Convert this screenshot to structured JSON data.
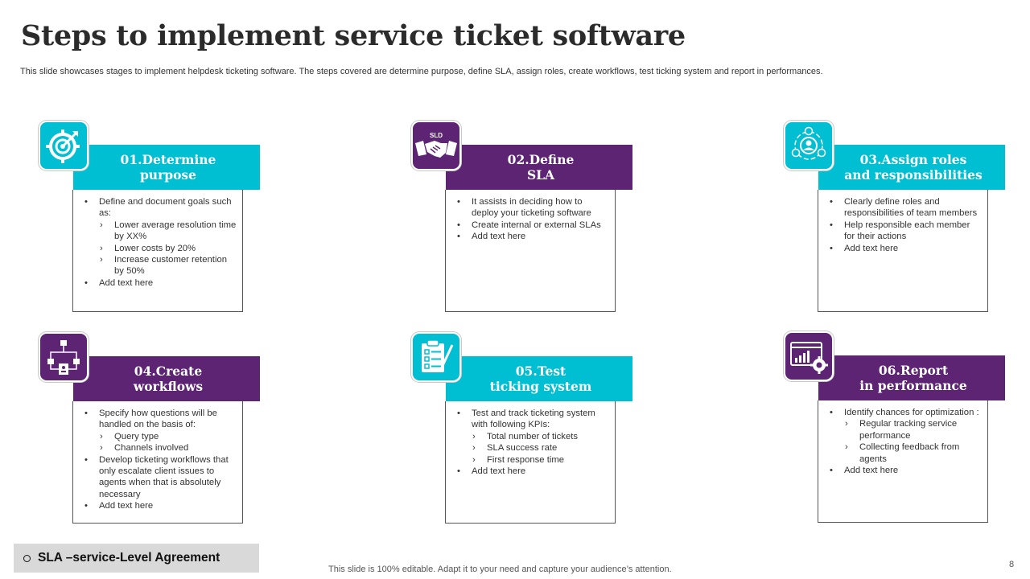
{
  "title": "Steps to implement service ticket software",
  "subtitle": "This slide showcases stages to implement helpdesk ticketing software. The steps covered are determine purpose, define SLA, assign roles, create workflows, test ticking system and report in performances.",
  "steps": [
    {
      "heading": [
        "01.Determine",
        "purpose"
      ],
      "icon": "target-icon",
      "color": "#00bfd3",
      "items": [
        {
          "text": "Define and document goals such as:",
          "sub": [
            "Lower average resolution time by XX%",
            "Lower costs by 20%",
            "Increase customer retention by 50%"
          ]
        },
        {
          "text": "Add text here",
          "sub": []
        }
      ]
    },
    {
      "heading": [
        "02.Define",
        "SLA"
      ],
      "icon": "handshake-icon",
      "icon_label": "SLD",
      "color": "#5c2473",
      "items": [
        {
          "text": "It assists in deciding how to deploy your ticketing software",
          "sub": []
        },
        {
          "text": "Create internal or external SLAs",
          "sub": []
        },
        {
          "text": "Add text here",
          "sub": []
        }
      ]
    },
    {
      "heading": [
        "03.Assign roles",
        "and responsibilities"
      ],
      "icon": "user-cycle-icon",
      "color": "#00bfd3",
      "items": [
        {
          "text": "Clearly define roles and responsibilities of team members",
          "sub": []
        },
        {
          "text": "Help responsible each member for their actions",
          "sub": []
        },
        {
          "text": "Add text here",
          "sub": []
        }
      ]
    },
    {
      "heading": [
        "04.Create",
        "workflows"
      ],
      "icon": "workflow-icon",
      "color": "#5c2473",
      "items": [
        {
          "text": "Specify how questions will be handled on the basis of:",
          "sub": [
            "Query type",
            "Channels involved"
          ]
        },
        {
          "text": "Develop ticketing workflows that only escalate client issues to agents when that is absolutely necessary",
          "sub": []
        },
        {
          "text": "Add text here",
          "sub": []
        }
      ]
    },
    {
      "heading": [
        "05.Test",
        "ticking system"
      ],
      "icon": "clipboard-checklist-icon",
      "color": "#00bfd3",
      "items": [
        {
          "text": "Test and track ticketing system with following KPIs:",
          "sub": [
            "Total number of tickets",
            "SLA success rate",
            "First response time"
          ]
        },
        {
          "text": "Add text here",
          "sub": []
        }
      ]
    },
    {
      "heading": [
        "06.Report",
        "in performance"
      ],
      "icon": "report-gear-icon",
      "color": "#5c2473",
      "items": [
        {
          "text": "Identify chances for optimization :",
          "sub": [
            "Regular tracking service performance",
            "Collecting feedback from agents"
          ]
        },
        {
          "text": "Add text here",
          "sub": []
        }
      ]
    }
  ],
  "note": "SLA –service-Level Agreement",
  "footer": "This slide is 100% editable. Adapt it to your need and capture your audience’s attention.",
  "page_number": "8"
}
